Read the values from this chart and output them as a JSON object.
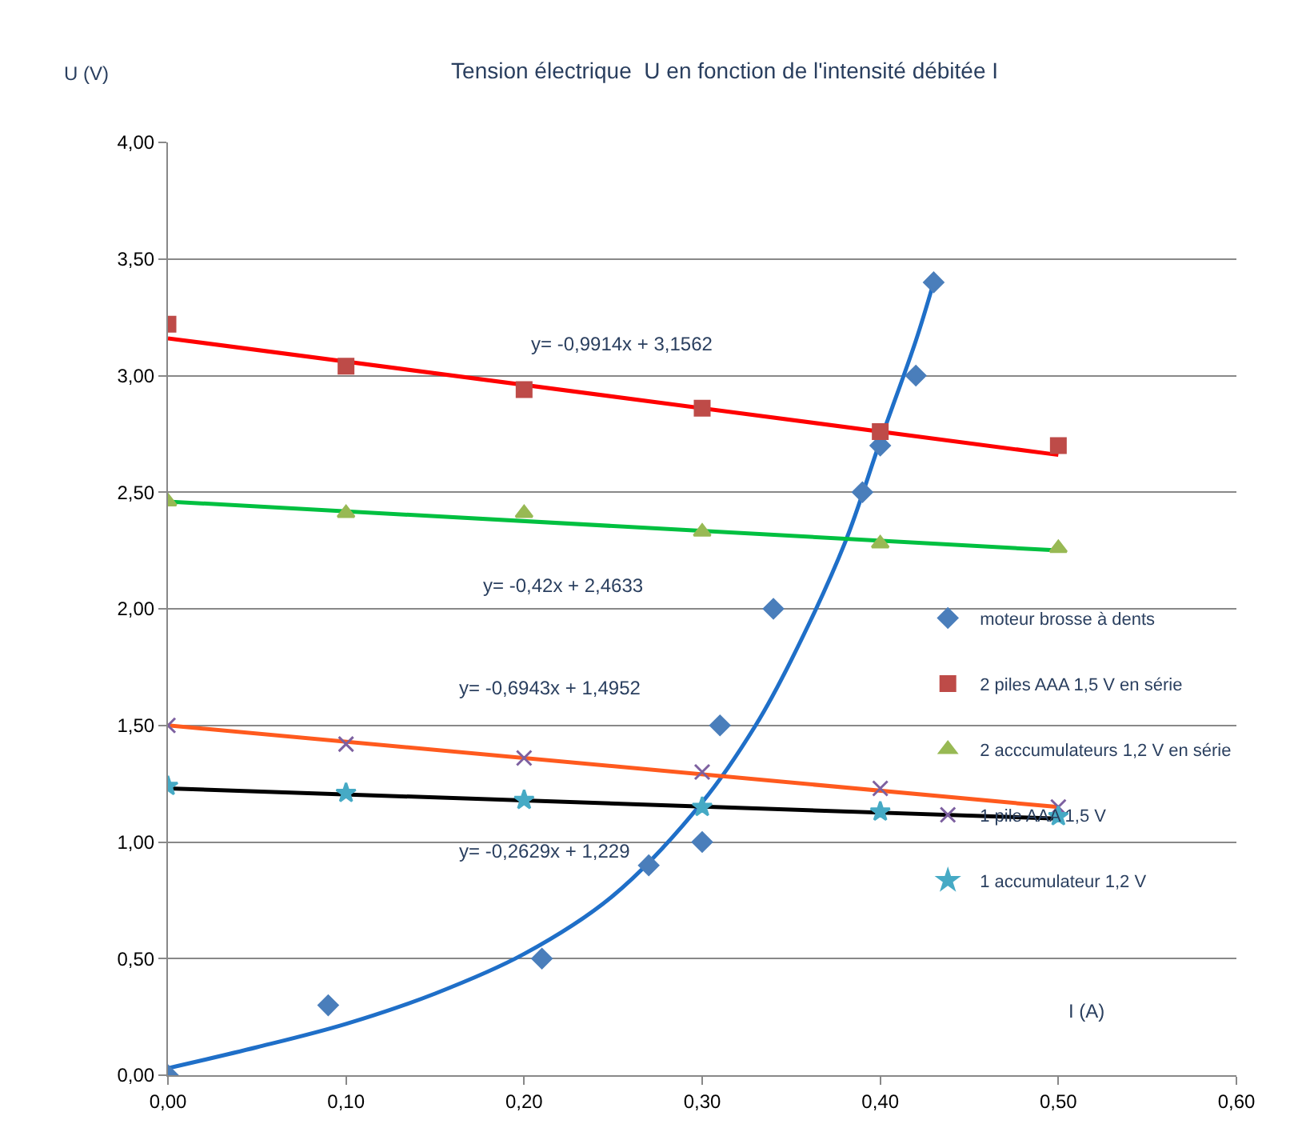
{
  "chart_data": {
    "type": "scatter",
    "title": "Tension électrique  U en fonction de l'intensité débitée I",
    "xlabel": "I (A)",
    "ylabel": "U (V)",
    "xlim": [
      0,
      0.6
    ],
    "xticks": [
      {
        "value": 0,
        "label": "0,00"
      },
      {
        "value": 0.1,
        "label": "0,10"
      },
      {
        "value": 0.2,
        "label": "0,20"
      },
      {
        "value": 0.3,
        "label": "0,30"
      },
      {
        "value": 0.4,
        "label": "0,40"
      },
      {
        "value": 0.5,
        "label": "0,50"
      },
      {
        "value": 0.6,
        "label": "0,60"
      }
    ],
    "ylim": [
      0,
      4
    ],
    "yticks": [
      {
        "value": 0,
        "label": "0,00"
      },
      {
        "value": 0.5,
        "label": "0,50"
      },
      {
        "value": 1,
        "label": "1,00"
      },
      {
        "value": 1.5,
        "label": "1,50"
      },
      {
        "value": 2,
        "label": "2,00"
      },
      {
        "value": 2.5,
        "label": "2,50"
      },
      {
        "value": 3,
        "label": "3,00"
      },
      {
        "value": 3.5,
        "label": "3,50"
      },
      {
        "value": 4,
        "label": "4,00"
      }
    ],
    "grid": "y",
    "legend": "right",
    "series": [
      {
        "name": "moteur brosse à dents",
        "color": "#4a7ebb",
        "marker": "diamond",
        "x": [
          0,
          0.09,
          0.21,
          0.27,
          0.3,
          0.31,
          0.34,
          0.39,
          0.4,
          0.42,
          0.43
        ],
        "values": [
          0,
          0.3,
          0.5,
          0.9,
          1.0,
          1.5,
          2.0,
          2.5,
          2.7,
          3.0,
          3.4
        ]
      },
      {
        "name": "2 piles AAA 1,5 V en série",
        "color": "#be4b48",
        "marker": "square",
        "x": [
          0,
          0.1,
          0.2,
          0.3,
          0.4,
          0.5
        ],
        "values": [
          3.22,
          3.04,
          2.94,
          2.86,
          2.76,
          2.7
        ]
      },
      {
        "name": "2 acccumulateurs 1,2 V en série",
        "color": "#98b954",
        "marker": "triangle",
        "x": [
          0,
          0.1,
          0.2,
          0.3,
          0.4,
          0.5
        ],
        "values": [
          2.46,
          2.41,
          2.41,
          2.33,
          2.28,
          2.26
        ]
      },
      {
        "name": "1 pile AAA 1,5 V",
        "color": "#7d60a0",
        "marker": "cross",
        "x": [
          0,
          0.1,
          0.2,
          0.3,
          0.4,
          0.5
        ],
        "values": [
          1.5,
          1.42,
          1.36,
          1.3,
          1.23,
          1.15
        ]
      },
      {
        "name": "1 accumulateur 1,2 V",
        "color": "#46aac5",
        "marker": "star",
        "x": [
          0,
          0.1,
          0.2,
          0.3,
          0.4,
          0.5
        ],
        "values": [
          1.24,
          1.21,
          1.18,
          1.15,
          1.13,
          1.11
        ]
      },
      {
        "type": "line",
        "color": "#1f6fc8",
        "marker": "none",
        "x": [
          0,
          0.05,
          0.1,
          0.15,
          0.2,
          0.25,
          0.3,
          0.33,
          0.35,
          0.38,
          0.4,
          0.42,
          0.43
        ],
        "values": [
          0.03,
          0.12,
          0.22,
          0.35,
          0.52,
          0.77,
          1.17,
          1.5,
          1.78,
          2.28,
          2.72,
          3.15,
          3.4
        ]
      },
      {
        "type": "line",
        "color": "#ff0000",
        "marker": "none",
        "x": [
          0,
          0.5
        ],
        "values": [
          3.16,
          2.66
        ]
      },
      {
        "type": "line",
        "color": "#00c040",
        "marker": "none",
        "x": [
          0,
          0.5
        ],
        "values": [
          2.46,
          2.25
        ]
      },
      {
        "type": "line",
        "color": "#ff5a1e",
        "marker": "none",
        "x": [
          0,
          0.5
        ],
        "values": [
          1.5,
          1.15
        ]
      },
      {
        "type": "line",
        "color": "#000000",
        "marker": "none",
        "x": [
          0,
          0.5
        ],
        "values": [
          1.23,
          1.1
        ]
      }
    ],
    "annotations": [
      "y= -0,9914x + 3,1562",
      "y= -0,42x + 2,4633",
      "y= -0,6943x + 1,4952",
      "y= -0,2629x + 1,229"
    ]
  }
}
